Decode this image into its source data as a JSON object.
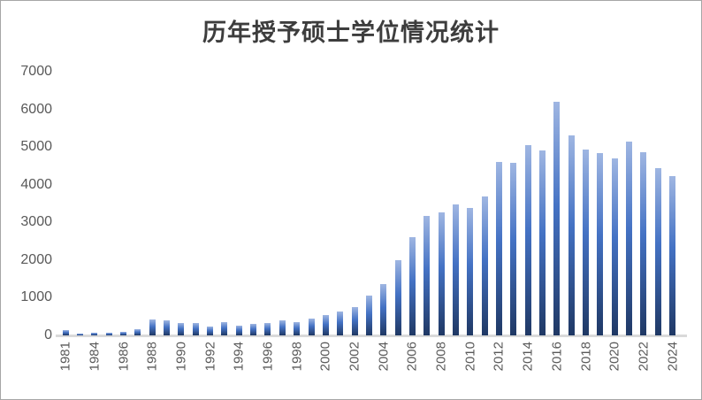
{
  "window": {
    "background": "#ffffff",
    "border_color": "#a6a6a6"
  },
  "chart_data": {
    "type": "bar",
    "title": "历年授予硕士学位情况统计",
    "categories": [
      "1981",
      "1982",
      "1984",
      "1985",
      "1986",
      "1987",
      "1988",
      "1989",
      "1990",
      "1991",
      "1992",
      "1993",
      "1994",
      "1995",
      "1996",
      "1997",
      "1998",
      "1999",
      "2000",
      "2001",
      "2002",
      "2003",
      "2004",
      "2005",
      "2006",
      "2007",
      "2008",
      "2009",
      "2010",
      "2011",
      "2012",
      "2013",
      "2014",
      "2015",
      "2016",
      "2017",
      "2018",
      "2019",
      "2020",
      "2021",
      "2022",
      "2023",
      "2024"
    ],
    "values": [
      150,
      50,
      65,
      80,
      90,
      160,
      430,
      400,
      320,
      340,
      245,
      350,
      260,
      315,
      320,
      395,
      360,
      450,
      540,
      630,
      750,
      1050,
      1360,
      2000,
      2600,
      3170,
      3260,
      3470,
      3390,
      3700,
      4610,
      4590,
      5040,
      4920,
      6200,
      5310,
      4940,
      4830,
      4710,
      5140,
      4870,
      4440,
      4230
    ],
    "x_tick_labels": [
      "1981",
      "1984",
      "1986",
      "1988",
      "1990",
      "1992",
      "1994",
      "1996",
      "1998",
      "2000",
      "2002",
      "2004",
      "2006",
      "2008",
      "2010",
      "2012",
      "2014",
      "2016",
      "2018",
      "2020",
      "2022",
      "2024"
    ],
    "x_tick_interval": 2,
    "y_ticks": [
      0,
      1000,
      2000,
      3000,
      4000,
      5000,
      6000,
      7000
    ],
    "ylim": [
      0,
      7000
    ],
    "xlabel": "",
    "ylabel": "",
    "grid": false,
    "legend_position": "none",
    "notes": "no data column for 1983",
    "colors": {
      "bar_gradient_top": "#9fb6e2",
      "bar_gradient_mid": "#4472c4",
      "bar_gradient_bottom": "#1f3864",
      "axis_line": "#d9d9d9",
      "tick_label": "#595959",
      "title": "#3d3d3d"
    }
  }
}
